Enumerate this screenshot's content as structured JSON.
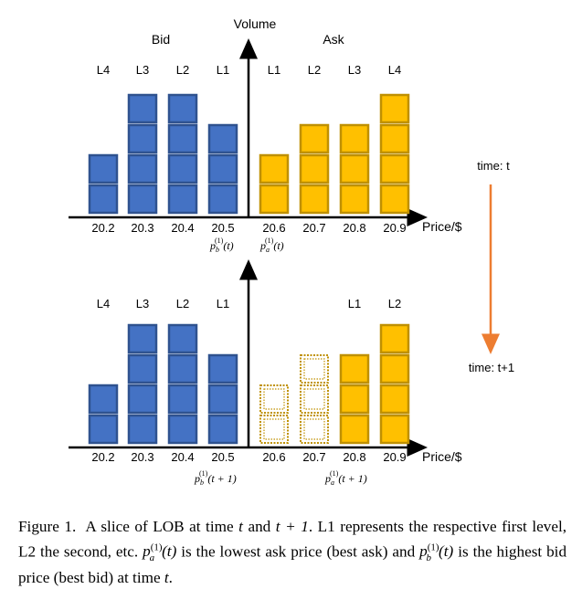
{
  "figure": {
    "colors": {
      "bid_fill": "#4472C4",
      "bid_stroke": "#2F528F",
      "ask_fill": "#FFC000",
      "ask_stroke": "#BF9000",
      "empty_stroke": "#BF9000",
      "timeline": "#ED7D31",
      "axis": "#000000"
    },
    "axis_labels": {
      "volume": "Volume",
      "price": "Price/$"
    },
    "side_labels": {
      "bid": "Bid",
      "ask": "Ask"
    },
    "prices": [
      "20.2",
      "20.3",
      "20.4",
      "20.5",
      "20.6",
      "20.7",
      "20.8",
      "20.9"
    ],
    "time_labels": {
      "t": "time: t",
      "t1": "time: t+1"
    },
    "top": {
      "levels": [
        "L4",
        "L3",
        "L2",
        "L1",
        "L1",
        "L2",
        "L3",
        "L4"
      ],
      "volumes": [
        2,
        4,
        4,
        3,
        2,
        3,
        3,
        4
      ],
      "sides": [
        "bid",
        "bid",
        "bid",
        "bid",
        "ask",
        "ask",
        "ask",
        "ask"
      ],
      "best_bid_label": "p_b^(1)(t)",
      "best_ask_label": "p_a^(1)(t)"
    },
    "bottom": {
      "levels": [
        "L4",
        "L3",
        "L2",
        "L1",
        "",
        "",
        "L1",
        "L2"
      ],
      "volumes": [
        2,
        4,
        4,
        3,
        2,
        3,
        3,
        4
      ],
      "sides": [
        "bid",
        "bid",
        "bid",
        "bid",
        "empty",
        "empty",
        "ask",
        "ask"
      ],
      "best_bid_label": "p_b^(1)(t + 1)",
      "best_ask_label": "p_a^(1)(t + 1)"
    }
  },
  "caption": {
    "prefix": "Figure 1.",
    "text1": "A slice of LOB at time",
    "t": "t",
    "and": "and",
    "t1": "t + 1",
    "text2": ". L1 represents the respective first level, L2 the second, etc.",
    "pa": "p",
    "pa_sup": "(1)",
    "pa_sub": "a",
    "pa_arg": "(t)",
    "text3": "is the lowest ask price (best ask) and",
    "pb": "p",
    "pb_sup": "(1)",
    "pb_sub": "b",
    "pb_arg": "(t)",
    "text4": "is the highest bid price (best bid) at time",
    "t_end": "t",
    "period": "."
  }
}
